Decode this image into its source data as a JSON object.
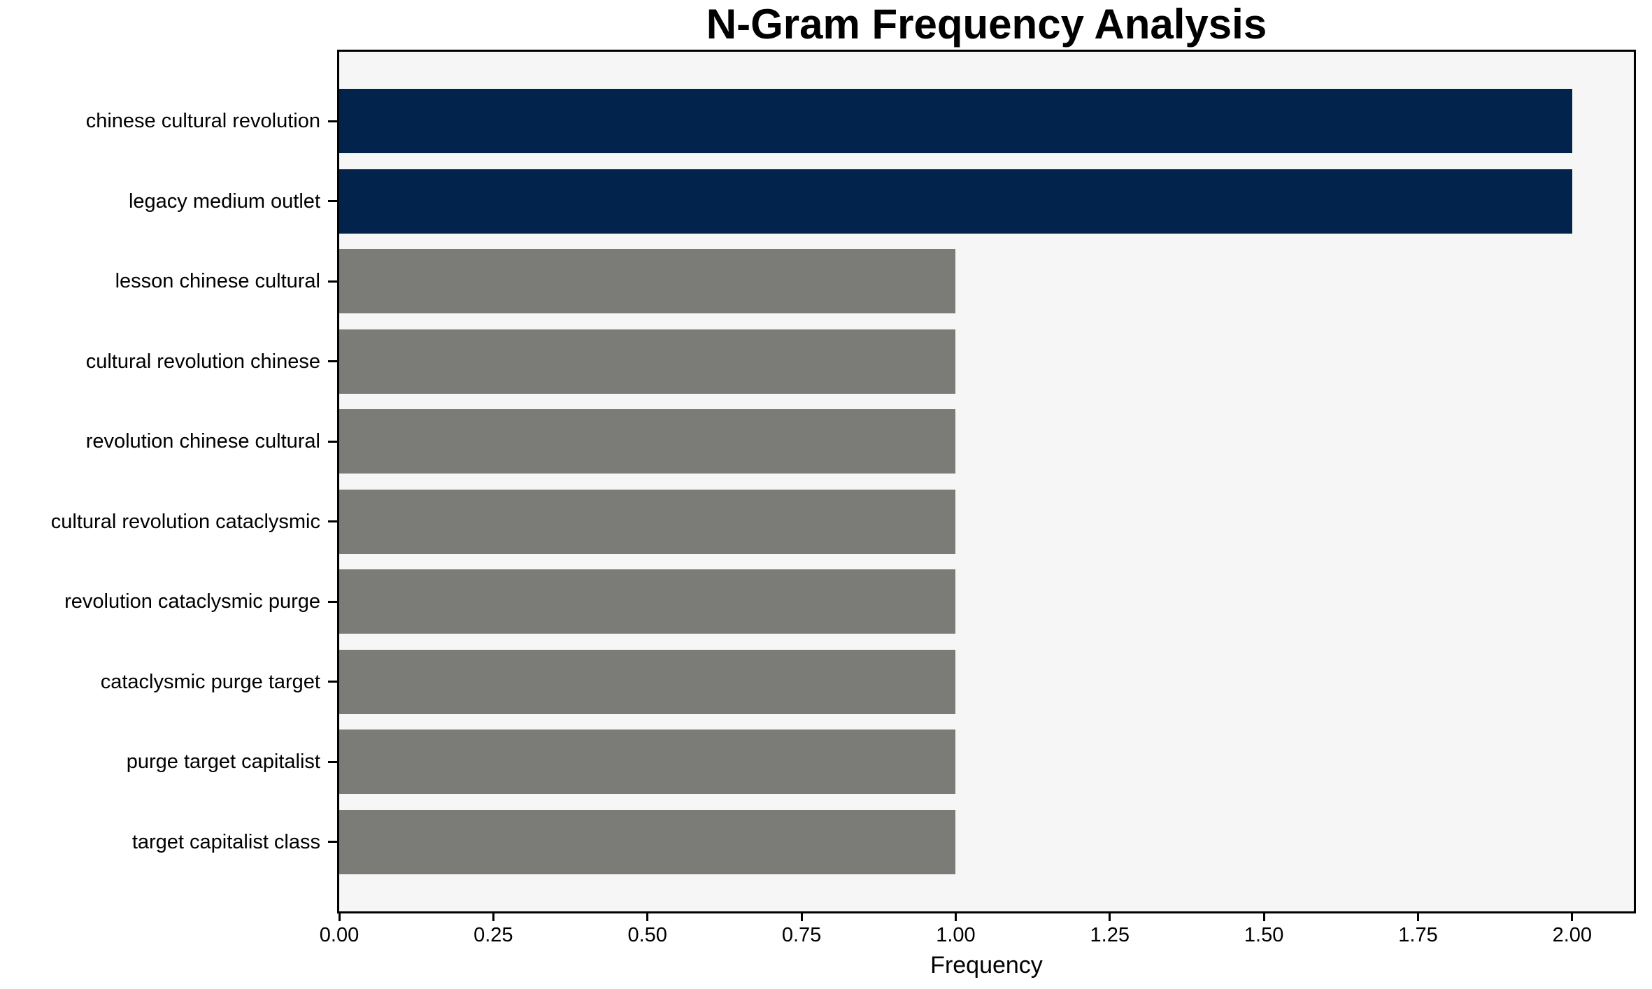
{
  "chart_data": {
    "type": "bar",
    "orientation": "horizontal",
    "title": "N-Gram Frequency Analysis",
    "xlabel": "Frequency",
    "ylabel": "",
    "categories": [
      "chinese cultural revolution",
      "legacy medium outlet",
      "lesson chinese cultural",
      "cultural revolution chinese",
      "revolution chinese cultural",
      "cultural revolution cataclysmic",
      "revolution cataclysmic purge",
      "cataclysmic purge target",
      "purge target capitalist",
      "target capitalist class"
    ],
    "values": [
      2,
      2,
      1,
      1,
      1,
      1,
      1,
      1,
      1,
      1
    ],
    "bar_colors": [
      "#02234c",
      "#02234c",
      "#7b7b77",
      "#7b7b77",
      "#7b7b77",
      "#7b7b77",
      "#7b7b77",
      "#7b7b77",
      "#7b7b77",
      "#7b7b77"
    ],
    "xlim": [
      0,
      2.1
    ],
    "xticks": {
      "values": [
        0,
        0.25,
        0.5,
        0.75,
        1.0,
        1.25,
        1.5,
        1.75,
        2.0
      ],
      "labels": [
        "0.00",
        "0.25",
        "0.50",
        "0.75",
        "1.00",
        "1.25",
        "1.50",
        "1.75",
        "2.00"
      ]
    },
    "grid": false,
    "legend": null,
    "colors": {
      "highlight_bar": "#02234c",
      "default_bar": "#7b7b77",
      "plot_background": "#f6f6f6",
      "figure_background": "#ffffff",
      "axis": "#000000"
    }
  }
}
